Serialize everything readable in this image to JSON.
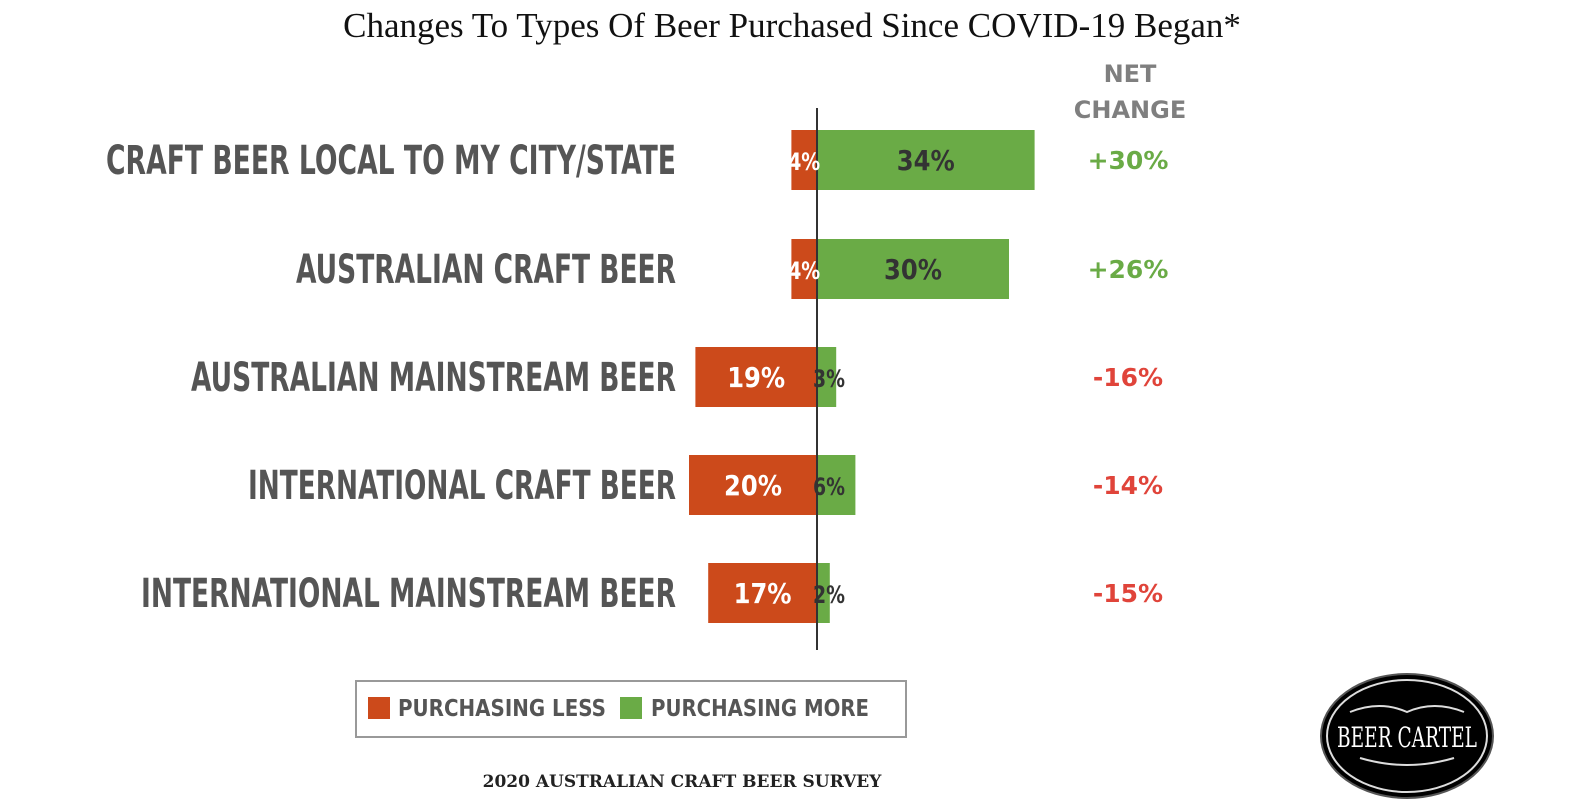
{
  "chart_data": {
    "type": "bar",
    "orientation": "horizontal-diverging",
    "title": "Changes To Types Of Beer Purchased Since COVID-19 Began*",
    "categories": [
      "CRAFT BEER LOCAL TO MY CITY/STATE",
      "AUSTRALIAN CRAFT BEER",
      "AUSTRALIAN MAINSTREAM BEER",
      "INTERNATIONAL CRAFT BEER",
      "INTERNATIONAL MAINSTREAM BEER"
    ],
    "series": [
      {
        "name": "PURCHASING LESS",
        "color": "#cc4a1b",
        "values": [
          4,
          4,
          19,
          20,
          17
        ],
        "labels": [
          "4%",
          "4%",
          "19%",
          "20%",
          "17%"
        ]
      },
      {
        "name": "PURCHASING MORE",
        "color": "#6aab46",
        "values": [
          34,
          30,
          3,
          6,
          2
        ],
        "labels": [
          "34%",
          "30%",
          "3%",
          "6%",
          "2%"
        ]
      }
    ],
    "net_change": {
      "header": [
        "NET",
        "CHANGE"
      ],
      "values": [
        30,
        26,
        -16,
        -14,
        -15
      ],
      "labels": [
        "+30%",
        "+26%",
        "-16%",
        "-14%",
        "-15%"
      ],
      "positive_color": "#6aab46",
      "negative_color": "#e0443a"
    },
    "legend_position": "bottom-center",
    "grid": false
  },
  "footer": {
    "survey": "2020 AUSTRALIAN CRAFT BEER SURVEY",
    "logo_text": "BEER CARTEL"
  }
}
